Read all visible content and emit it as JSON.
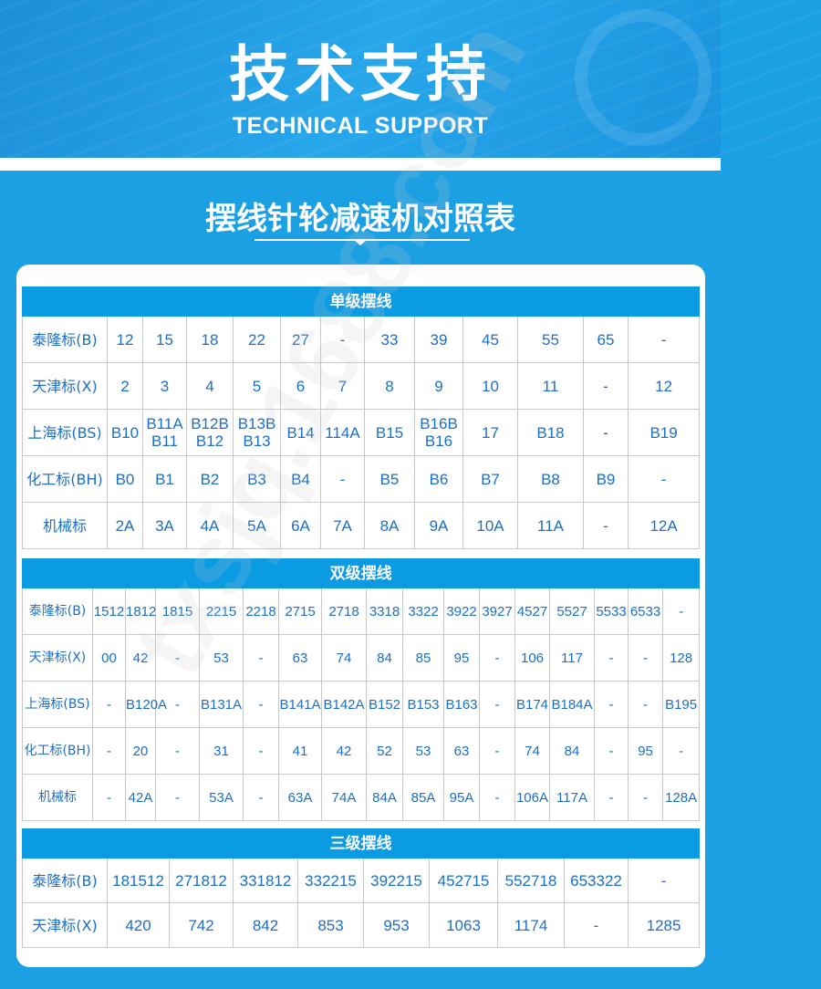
{
  "header": {
    "title": "技术支持",
    "subtitle_en": "TECHNICAL SUPPORT"
  },
  "section_title": "摆线针轮减速机对照表",
  "watermark": "txsjq.1688.com",
  "accent_color": "#0a9be3",
  "text_color": "#1c6fc4",
  "tables": [
    {
      "title": "单级摆线",
      "rows": [
        [
          "泰隆标(B)",
          "12",
          "15",
          "18",
          "22",
          "27",
          "-",
          "33",
          "39",
          "45",
          "55",
          "65",
          "-"
        ],
        [
          "天津标(X)",
          "2",
          "3",
          "4",
          "5",
          "6",
          "7",
          "8",
          "9",
          "10",
          "11",
          "-",
          "12"
        ],
        [
          "上海标(BS)",
          "B10",
          "B11A\nB11",
          "B12B\nB12",
          "B13B\nB13",
          "B14",
          "114A",
          "B15",
          "B16B\nB16",
          "17",
          "B18",
          "-",
          "B19"
        ],
        [
          "化工标(BH)",
          "B0",
          "B1",
          "B2",
          "B3",
          "B4",
          "-",
          "B5",
          "B6",
          "B7",
          "B8",
          "B9",
          "-"
        ],
        [
          "机械标",
          "2A",
          "3A",
          "4A",
          "5A",
          "6A",
          "7A",
          "8A",
          "9A",
          "10A",
          "11A",
          "-",
          "12A"
        ]
      ]
    },
    {
      "title": "双级摆线",
      "rows": [
        [
          "泰隆标(B)",
          "1512",
          "1812",
          "1815",
          "2215",
          "2218",
          "2715",
          "2718",
          "3318",
          "3322",
          "3922",
          "3927",
          "4527",
          "5527",
          "5533",
          "6533",
          "-"
        ],
        [
          "天津标(X)",
          "00",
          "42",
          "-",
          "53",
          "-",
          "63",
          "74",
          "84",
          "85",
          "95",
          "-",
          "106",
          "117",
          "-",
          "-",
          "128"
        ],
        [
          "上海标(BS)",
          "-",
          "B120A",
          "-",
          "B131A",
          "-",
          "B141A",
          "B142A",
          "B152",
          "B153",
          "B163",
          "-",
          "B174",
          "B184A",
          "-",
          "-",
          "B195"
        ],
        [
          "化工标(BH)",
          "-",
          "20",
          "-",
          "31",
          "-",
          "41",
          "42",
          "52",
          "53",
          "63",
          "-",
          "74",
          "84",
          "-",
          "95",
          "-"
        ],
        [
          "机械标",
          "-",
          "42A",
          "-",
          "53A",
          "-",
          "63A",
          "74A",
          "84A",
          "85A",
          "95A",
          "-",
          "106A",
          "117A",
          "-",
          "-",
          "128A"
        ]
      ]
    },
    {
      "title": "三级摆线",
      "rows": [
        [
          "泰隆标(B)",
          "181512",
          "271812",
          "331812",
          "332215",
          "392215",
          "452715",
          "552718",
          "653322",
          "-"
        ],
        [
          "天津标(X)",
          "420",
          "742",
          "842",
          "853",
          "953",
          "1063",
          "1174",
          "-",
          "1285"
        ]
      ]
    }
  ]
}
